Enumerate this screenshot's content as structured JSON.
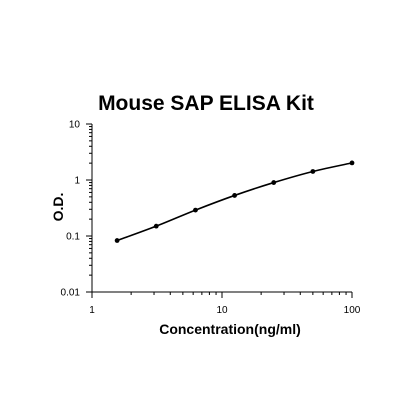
{
  "chart_data": {
    "type": "line",
    "title": "Mouse SAP ELISA Kit",
    "xlabel": "Concentration(ng/ml)",
    "ylabel": "O.D.",
    "x_scale": "log",
    "y_scale": "log",
    "xlim": [
      1,
      100
    ],
    "ylim": [
      0.01,
      10
    ],
    "x_ticks": [
      "1",
      "10",
      "100"
    ],
    "y_ticks": [
      "10",
      "1",
      "0.1",
      "0.01"
    ],
    "grid": false,
    "legend": "none",
    "series": [
      {
        "x": [
          1.56,
          3.12,
          6.25,
          12.5,
          25,
          50,
          100
        ],
        "y": [
          0.083,
          0.15,
          0.29,
          0.53,
          0.9,
          1.42,
          2.02
        ]
      }
    ],
    "colors": {
      "line": "#000000",
      "marker": "#000000",
      "axis": "#000000"
    }
  }
}
